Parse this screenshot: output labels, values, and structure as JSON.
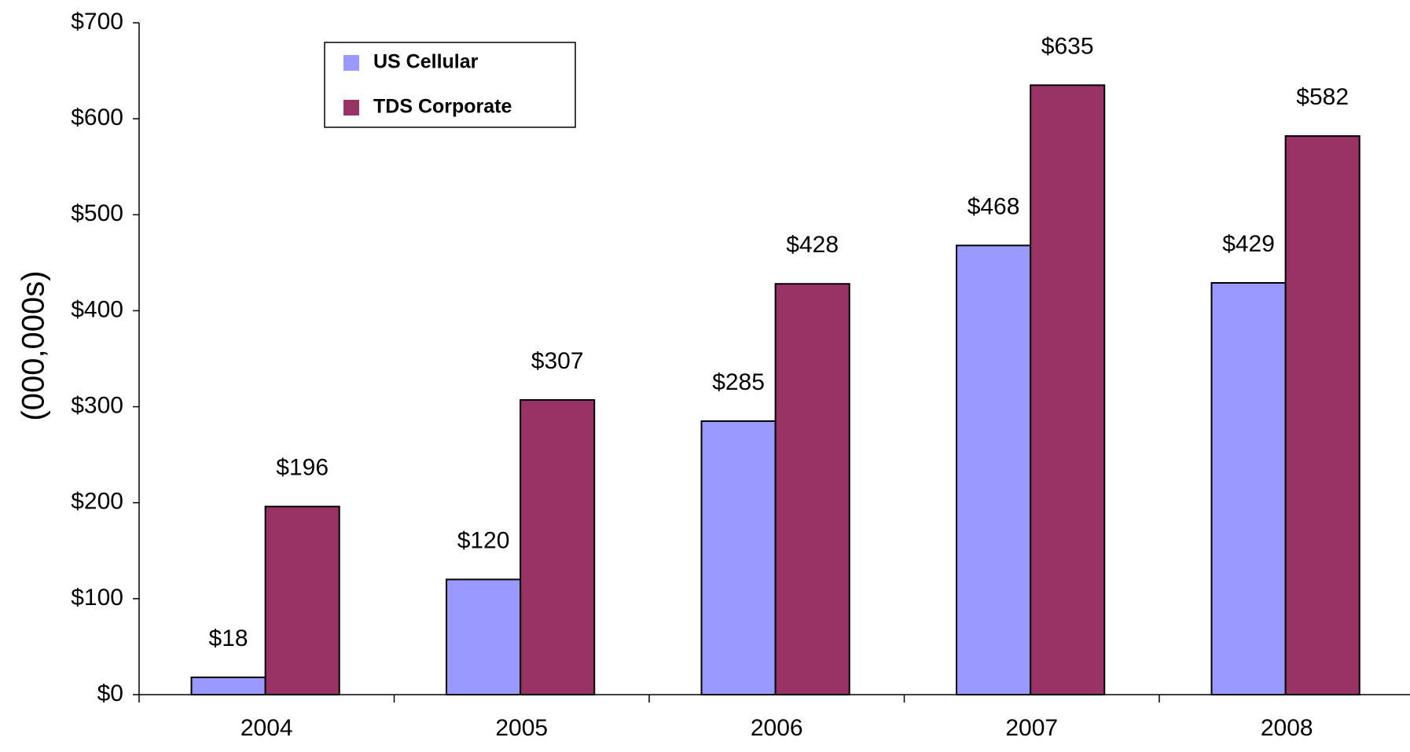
{
  "chart_data": {
    "type": "bar",
    "ylabel": "(000,000s)",
    "categories": [
      "2004",
      "2005",
      "2006",
      "2007",
      "2008"
    ],
    "series": [
      {
        "name": "US Cellular",
        "color": "#9999ff",
        "values": [
          18,
          120,
          285,
          468,
          429
        ],
        "value_labels": [
          "$18",
          "$120",
          "$285",
          "$468",
          "$429"
        ]
      },
      {
        "name": "TDS Corporate",
        "color": "#993366",
        "values": [
          196,
          307,
          428,
          635,
          582
        ],
        "value_labels": [
          "$196",
          "$307",
          "$428",
          "$635",
          "$582"
        ]
      }
    ],
    "ylim": [
      0,
      700
    ],
    "yticks": [
      {
        "value": 0,
        "label": "$0"
      },
      {
        "value": 100,
        "label": "$100"
      },
      {
        "value": 200,
        "label": "$200"
      },
      {
        "value": 300,
        "label": "$300"
      },
      {
        "value": 400,
        "label": "$400"
      },
      {
        "value": 500,
        "label": "$500"
      },
      {
        "value": 600,
        "label": "$600"
      },
      {
        "value": 700,
        "label": "$700"
      }
    ],
    "grid": false,
    "legend": "top-left"
  }
}
